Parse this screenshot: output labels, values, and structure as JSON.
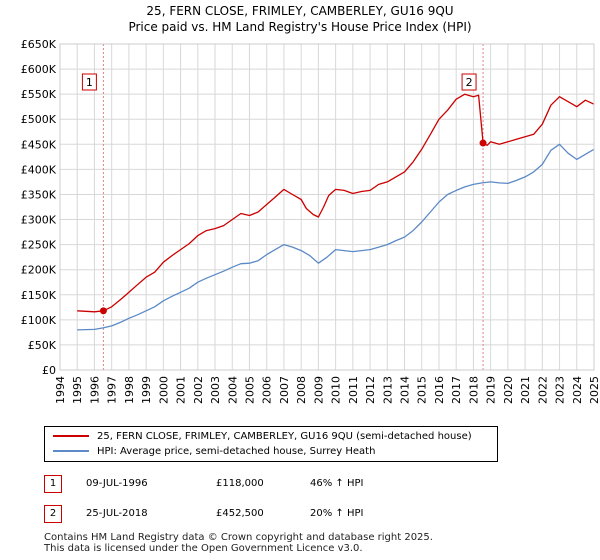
{
  "title_line1": "25, FERN CLOSE, FRIMLEY, CAMBERLEY, GU16 9QU",
  "title_line2": "Price paid vs. HM Land Registry's House Price Index (HPI)",
  "legend": {
    "property_label": "25, FERN CLOSE, FRIMLEY, CAMBERLEY, GU16 9QU (semi-detached house)",
    "hpi_label": "HPI: Average price, semi-detached house, Surrey Heath"
  },
  "events": [
    {
      "num": "1",
      "date": "09-JUL-1996",
      "price": "£118,000",
      "hpi": "46% ↑ HPI"
    },
    {
      "num": "2",
      "date": "25-JUL-2018",
      "price": "£452,500",
      "hpi": "20% ↑ HPI"
    }
  ],
  "footer_line1": "Contains HM Land Registry data © Crown copyright and database right 2025.",
  "footer_line2": "This data is licensed under the Open Government Licence v3.0.",
  "chart_data": {
    "type": "line",
    "title": "Price paid vs. HM Land Registry's House Price Index (HPI)",
    "xlim": [
      1994,
      2025
    ],
    "ylim": [
      0,
      650000
    ],
    "xticks": [
      1994,
      1995,
      1996,
      1997,
      1998,
      1999,
      2000,
      2001,
      2002,
      2003,
      2004,
      2005,
      2006,
      2007,
      2008,
      2009,
      2010,
      2011,
      2012,
      2013,
      2014,
      2015,
      2016,
      2017,
      2018,
      2019,
      2020,
      2021,
      2022,
      2023,
      2024,
      2025
    ],
    "yticks": [
      0,
      50000,
      100000,
      150000,
      200000,
      250000,
      300000,
      350000,
      400000,
      450000,
      500000,
      550000,
      600000,
      650000
    ],
    "ytick_labels": [
      "£0",
      "£50K",
      "£100K",
      "£150K",
      "£200K",
      "£250K",
      "£300K",
      "£350K",
      "£400K",
      "£450K",
      "£500K",
      "£550K",
      "£600K",
      "£650K"
    ],
    "grid": true,
    "colors": {
      "property": "#cc0000",
      "hpi": "#5b8ac6",
      "event_line": "#e08080",
      "grid": "#d8d8d8",
      "plot_bg": "#ffffff"
    },
    "series": [
      {
        "name": "25, FERN CLOSE, FRIMLEY, CAMBERLEY, GU16 9QU (semi-detached house)",
        "x": [
          1995.0,
          1995.5,
          1996.0,
          1996.52,
          1997.0,
          1997.5,
          1998.0,
          1998.5,
          1999.0,
          1999.5,
          2000.0,
          2000.5,
          2001.0,
          2001.5,
          2002.0,
          2002.5,
          2003.0,
          2003.5,
          2004.0,
          2004.5,
          2005.0,
          2005.5,
          2006.0,
          2006.5,
          2007.0,
          2007.5,
          2008.0,
          2008.3,
          2008.7,
          2009.0,
          2009.3,
          2009.6,
          2010.0,
          2010.5,
          2011.0,
          2011.5,
          2012.0,
          2012.5,
          2013.0,
          2013.5,
          2014.0,
          2014.5,
          2015.0,
          2015.5,
          2016.0,
          2016.5,
          2017.0,
          2017.5,
          2018.0,
          2018.3,
          2018.56,
          2018.8,
          2019.0,
          2019.5,
          2020.0,
          2020.5,
          2021.0,
          2021.5,
          2022.0,
          2022.5,
          2023.0,
          2023.5,
          2024.0,
          2024.5,
          2025.0
        ],
        "y": [
          118000,
          117000,
          116000,
          118000,
          126000,
          140000,
          155000,
          170000,
          185000,
          195000,
          215000,
          228000,
          240000,
          252000,
          268000,
          278000,
          282000,
          288000,
          300000,
          312000,
          308000,
          315000,
          330000,
          345000,
          360000,
          350000,
          340000,
          322000,
          310000,
          305000,
          325000,
          348000,
          360000,
          358000,
          352000,
          356000,
          358000,
          370000,
          375000,
          385000,
          395000,
          415000,
          440000,
          470000,
          500000,
          518000,
          540000,
          550000,
          545000,
          548000,
          452500,
          448000,
          455000,
          450000,
          455000,
          460000,
          465000,
          470000,
          490000,
          528000,
          545000,
          535000,
          525000,
          538000,
          530000
        ]
      },
      {
        "name": "HPI: Average price, semi-detached house, Surrey Heath",
        "x": [
          1995.0,
          1995.5,
          1996.0,
          1996.5,
          1997.0,
          1997.5,
          1998.0,
          1998.5,
          1999.0,
          1999.5,
          2000.0,
          2000.5,
          2001.0,
          2001.5,
          2002.0,
          2002.5,
          2003.0,
          2003.5,
          2004.0,
          2004.5,
          2005.0,
          2005.5,
          2006.0,
          2006.5,
          2007.0,
          2007.5,
          2008.0,
          2008.5,
          2009.0,
          2009.5,
          2010.0,
          2010.5,
          2011.0,
          2011.5,
          2012.0,
          2012.5,
          2013.0,
          2013.5,
          2014.0,
          2014.5,
          2015.0,
          2015.5,
          2016.0,
          2016.5,
          2017.0,
          2017.5,
          2018.0,
          2018.5,
          2019.0,
          2019.5,
          2020.0,
          2020.5,
          2021.0,
          2021.5,
          2022.0,
          2022.5,
          2023.0,
          2023.5,
          2024.0,
          2024.5,
          2025.0
        ],
        "y": [
          80000,
          80500,
          81000,
          84000,
          88000,
          95000,
          103000,
          110000,
          118000,
          126000,
          138000,
          147000,
          155000,
          163000,
          175000,
          183000,
          190000,
          197000,
          205000,
          212000,
          213000,
          218000,
          230000,
          240000,
          250000,
          245000,
          238000,
          228000,
          213000,
          225000,
          240000,
          238000,
          236000,
          238000,
          240000,
          245000,
          250000,
          258000,
          265000,
          278000,
          295000,
          315000,
          335000,
          350000,
          358000,
          365000,
          370000,
          373000,
          375000,
          373000,
          372000,
          378000,
          385000,
          395000,
          410000,
          438000,
          450000,
          432000,
          420000,
          430000,
          440000
        ]
      }
    ],
    "events": [
      {
        "label": "1",
        "x": 1996.52,
        "y": 118000,
        "date": "09-JUL-1996",
        "price": "£118,000"
      },
      {
        "label": "2",
        "x": 2018.56,
        "y": 452500,
        "date": "25-JUL-2018",
        "price": "£452,500"
      }
    ]
  }
}
